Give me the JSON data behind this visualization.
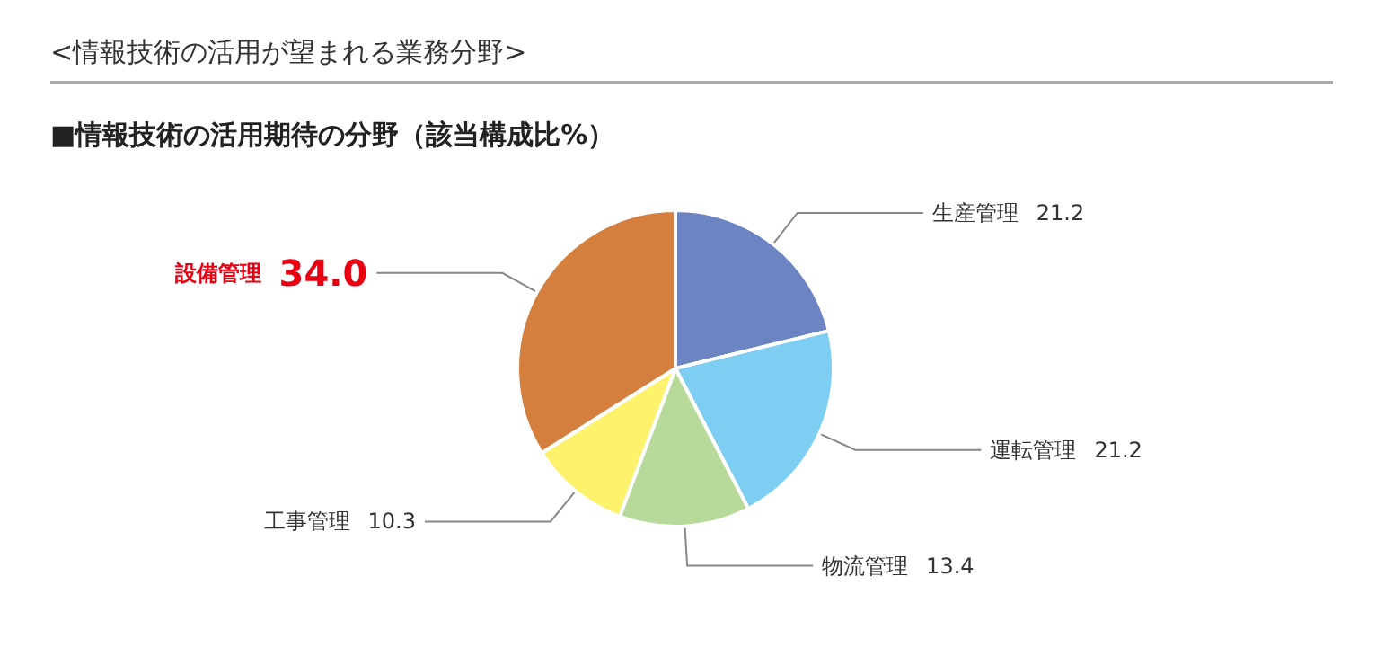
{
  "chart_data": {
    "type": "pie",
    "title": "<情報技術の活用が望まれる業務分野>",
    "subtitle": "■情報技術の活用期待の分野（該当構成比%）",
    "categories": [
      "生産管理",
      "運転管理",
      "物流管理",
      "工事管理",
      "設備管理"
    ],
    "values": [
      21.2,
      21.2,
      13.4,
      10.3,
      34.0
    ],
    "value_labels": [
      "21.2",
      "21.2",
      "13.4",
      "10.3",
      "34.0"
    ],
    "colors": [
      "#6d84c2",
      "#7ecdf3",
      "#b7d99a",
      "#fdf26c",
      "#d47f3e"
    ],
    "legend": false
  }
}
